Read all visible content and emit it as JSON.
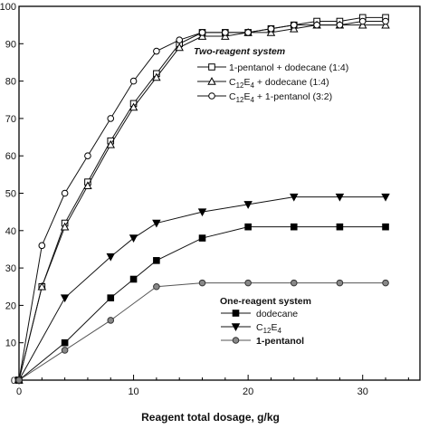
{
  "chart_data": {
    "type": "line",
    "xlabel": "Reagent total dosage, g/kg",
    "ylabel": "",
    "xlim": [
      0,
      35
    ],
    "ylim": [
      0,
      100
    ],
    "x_ticks": [
      "0",
      "10",
      "20",
      "30"
    ],
    "y_ticks": [
      "0",
      "10",
      "20",
      "30",
      "40",
      "50",
      "60",
      "70",
      "80",
      "90",
      "100"
    ],
    "grid": false,
    "legends": [
      {
        "title": "Two-reagent system",
        "placement": "top-right",
        "entries": [
          {
            "label": "1-pentanol + dodecane  (1:4)",
            "series": 0
          },
          {
            "label": "C12E4 + dodecane (1:4)",
            "series": 1
          },
          {
            "label": "C12E4 + 1-pentanol (3:2)",
            "series": 2
          }
        ]
      },
      {
        "title": "One-reagent system",
        "placement": "center-bottom",
        "entries": [
          {
            "label": "dodecane",
            "series": 3
          },
          {
            "label": "C12E4",
            "series": 4
          },
          {
            "label": "1-pentanol",
            "series": 5
          }
        ]
      }
    ],
    "series": [
      {
        "name": "1-pentanol + dodecane  (1:4)",
        "marker": "open-square",
        "x": [
          0,
          2,
          4,
          6,
          8,
          10,
          12,
          14,
          16,
          18,
          20,
          22,
          24,
          26,
          28,
          30,
          32
        ],
        "y": [
          0,
          25,
          42,
          53,
          64,
          74,
          82,
          90,
          93,
          93,
          93,
          94,
          95,
          96,
          96,
          97,
          97
        ]
      },
      {
        "name": "C12E4 + dodecane (1:4)",
        "marker": "open-triangle",
        "x": [
          0,
          2,
          4,
          6,
          8,
          10,
          12,
          14,
          16,
          18,
          20,
          22,
          24,
          26,
          28,
          30,
          32
        ],
        "y": [
          0,
          25,
          41,
          52,
          63,
          73,
          81,
          89,
          92,
          92,
          93,
          93,
          94,
          95,
          95,
          95,
          95
        ]
      },
      {
        "name": "C12E4 + 1-pentanol (3:2)",
        "marker": "open-circle",
        "x": [
          0,
          2,
          4,
          6,
          8,
          10,
          12,
          14,
          16,
          18,
          20,
          22,
          24,
          26,
          28,
          30,
          32
        ],
        "y": [
          0,
          36,
          50,
          60,
          70,
          80,
          88,
          91,
          93,
          93,
          93,
          94,
          95,
          95,
          95,
          96,
          96
        ]
      },
      {
        "name": "dodecane",
        "marker": "filled-square",
        "x": [
          0,
          4,
          8,
          10,
          12,
          16,
          20,
          24,
          28,
          32
        ],
        "y": [
          0,
          10,
          22,
          27,
          32,
          38,
          41,
          41,
          41,
          41
        ]
      },
      {
        "name": "C12E4",
        "marker": "filled-triangle-down",
        "x": [
          0,
          4,
          8,
          10,
          12,
          16,
          20,
          24,
          28,
          32
        ],
        "y": [
          0,
          22,
          33,
          38,
          42,
          45,
          47,
          49,
          49,
          49
        ]
      },
      {
        "name": "1-pentanol",
        "marker": "gray-circle",
        "x": [
          0,
          4,
          8,
          12,
          16,
          20,
          24,
          28,
          32
        ],
        "y": [
          0,
          8,
          16,
          25,
          26,
          26,
          26,
          26,
          26
        ]
      }
    ]
  }
}
